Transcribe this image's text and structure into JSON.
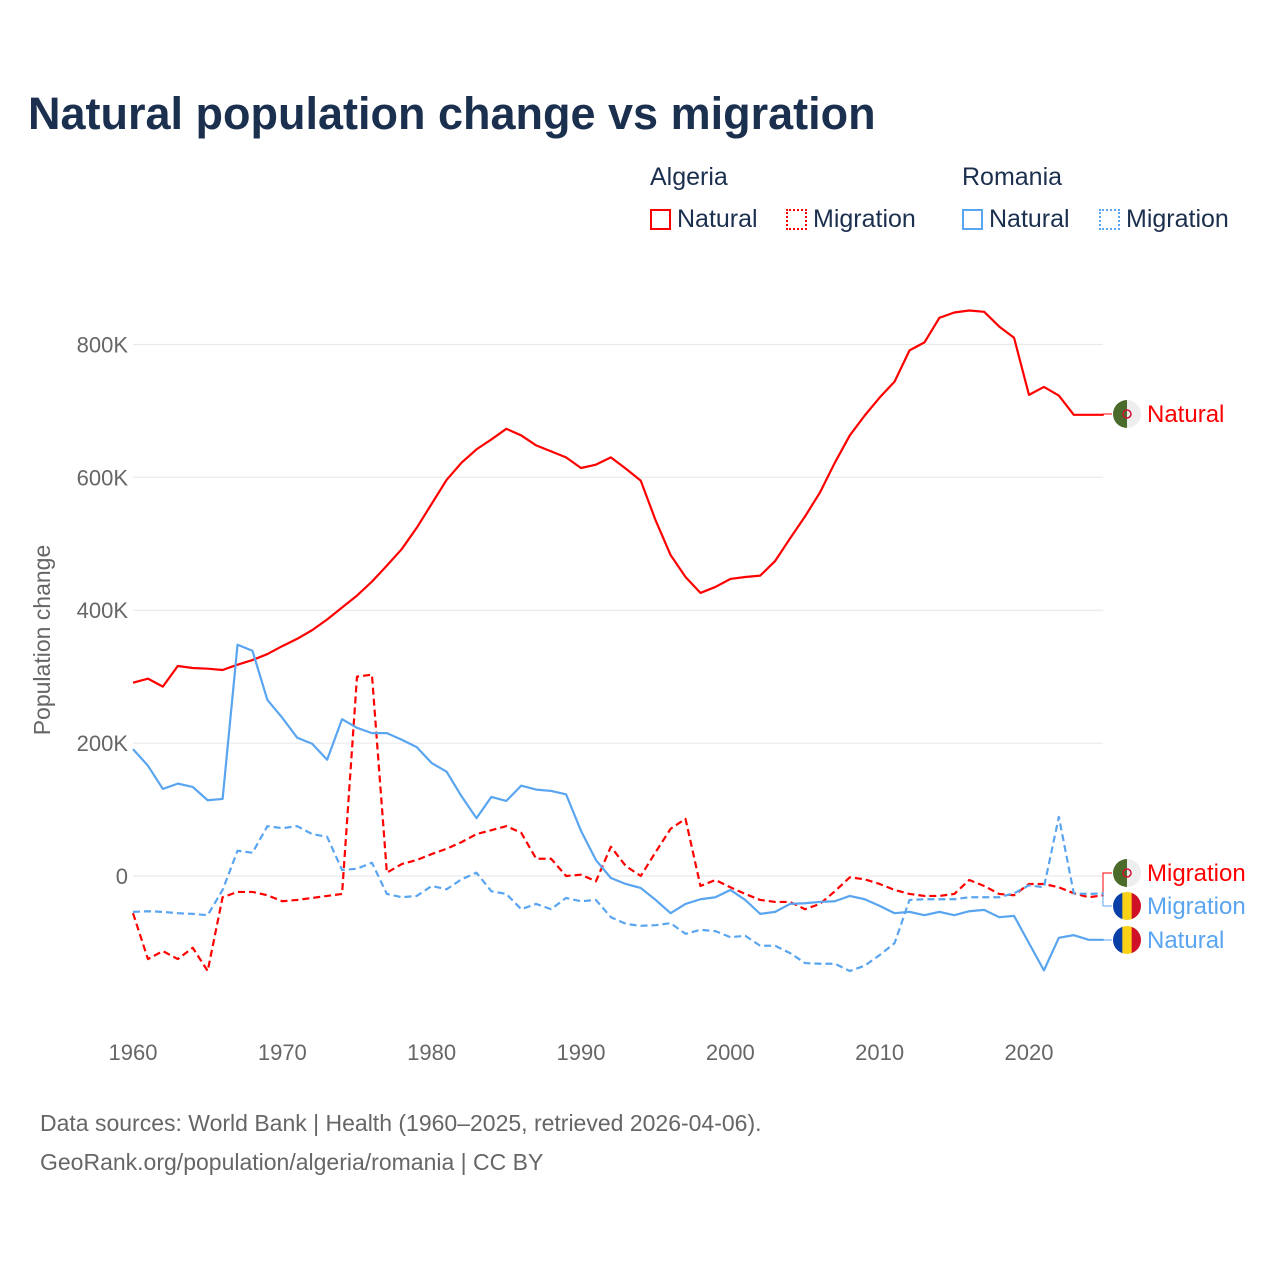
{
  "title": "Natural population change vs migration",
  "legend": {
    "groups": [
      {
        "name": "Algeria",
        "items": [
          "Natural",
          "Migration"
        ]
      },
      {
        "name": "Romania",
        "items": [
          "Natural",
          "Migration"
        ]
      }
    ]
  },
  "colors": {
    "algeria": "#ff0000",
    "romania": "#5aa5f0",
    "grid": "#e6e6e6",
    "axis_text": "#666666"
  },
  "footer": {
    "line1": "Data sources: World Bank | Health (1960–2025, retrieved 2026-04-06).",
    "line2": "GeoRank.org/population/algeria/romania | CC BY"
  },
  "chart_data": {
    "type": "line",
    "title": "Natural population change vs migration",
    "xlabel": "",
    "ylabel": "Population change",
    "xlim": [
      1960,
      2025
    ],
    "ylim": [
      -200000,
      900000
    ],
    "x_ticks": [
      "1960",
      "1970",
      "1980",
      "1990",
      "2000",
      "2010",
      "2020"
    ],
    "y_ticks": [
      {
        "value": 0,
        "label": "0"
      },
      {
        "value": 200000,
        "label": "200K"
      },
      {
        "value": 400000,
        "label": "400K"
      },
      {
        "value": 600000,
        "label": "600K"
      },
      {
        "value": 800000,
        "label": "800K"
      }
    ],
    "grid": true,
    "start_year": 1960,
    "series": [
      {
        "name": "Algeria Natural",
        "country": "Algeria",
        "kind": "Natural",
        "end_label": "Natural",
        "dashed": false,
        "values_k": [
          291,
          297,
          285,
          316,
          313,
          312,
          310,
          318,
          325,
          334,
          346,
          357,
          370,
          386,
          404,
          422,
          443,
          467,
          492,
          524,
          560,
          596,
          622,
          642,
          657,
          673,
          663,
          648,
          639,
          630,
          614,
          619,
          630,
          613,
          595,
          535,
          483,
          450,
          426,
          435,
          447,
          450,
          452,
          474,
          508,
          541,
          577,
          622,
          663,
          693,
          720,
          744,
          791,
          803,
          840,
          848,
          851,
          849,
          827,
          810,
          724,
          736,
          723,
          694,
          694,
          694
        ]
      },
      {
        "name": "Algeria Migration",
        "country": "Algeria",
        "kind": "Migration",
        "end_label": "Migration",
        "dashed": true,
        "values_k": [
          -56,
          -125,
          -113,
          -125,
          -108,
          -143,
          -32,
          -24,
          -24,
          -29,
          -38,
          -36,
          -33,
          -30,
          -27,
          300,
          303,
          5,
          18,
          24,
          33,
          41,
          51,
          63,
          69,
          75,
          65,
          26,
          26,
          0,
          2,
          -8,
          44,
          15,
          0,
          36,
          71,
          86,
          -15,
          -6,
          -17,
          -27,
          -36,
          -39,
          -39,
          -50,
          -42,
          -23,
          -2,
          -5,
          -12,
          -21,
          -27,
          -30,
          -30,
          -27,
          -6,
          -15,
          -27,
          -29,
          -12,
          -12,
          -17,
          -26,
          -32,
          -29
        ]
      },
      {
        "name": "Romania Migration",
        "country": "Romania",
        "kind": "Migration",
        "end_label": "Migration",
        "dashed": true,
        "values_k": [
          -54,
          -53,
          -54,
          -56,
          -57,
          -59,
          -21,
          38,
          35,
          75,
          72,
          75,
          63,
          59,
          9,
          11,
          20,
          -27,
          -32,
          -30,
          -15,
          -20,
          -5,
          5,
          -23,
          -27,
          -50,
          -42,
          -50,
          -33,
          -38,
          -36,
          -62,
          -72,
          -75,
          -74,
          -71,
          -87,
          -81,
          -83,
          -92,
          -90,
          -105,
          -105,
          -116,
          -131,
          -132,
          -132,
          -143,
          -135,
          -119,
          -101,
          -36,
          -35,
          -35,
          -35,
          -32,
          -32,
          -32,
          -26,
          -14,
          -17,
          89,
          -26,
          -27,
          -26
        ]
      },
      {
        "name": "Romania Natural",
        "country": "Romania",
        "kind": "Natural",
        "end_label": "Natural",
        "dashed": false,
        "values_k": [
          191,
          166,
          131,
          139,
          134,
          114,
          116,
          348,
          339,
          265,
          238,
          208,
          199,
          175,
          236,
          223,
          215,
          215,
          205,
          194,
          170,
          157,
          120,
          87,
          119,
          113,
          136,
          130,
          128,
          123,
          68,
          24,
          -3,
          -12,
          -18,
          -36,
          -56,
          -42,
          -35,
          -32,
          -21,
          -36,
          -57,
          -54,
          -42,
          -41,
          -39,
          -38,
          -30,
          -35,
          -45,
          -56,
          -54,
          -59,
          -54,
          -59,
          -53,
          -51,
          -62,
          -60,
          -101,
          -142,
          -93,
          -89,
          -96,
          -96
        ]
      }
    ]
  }
}
